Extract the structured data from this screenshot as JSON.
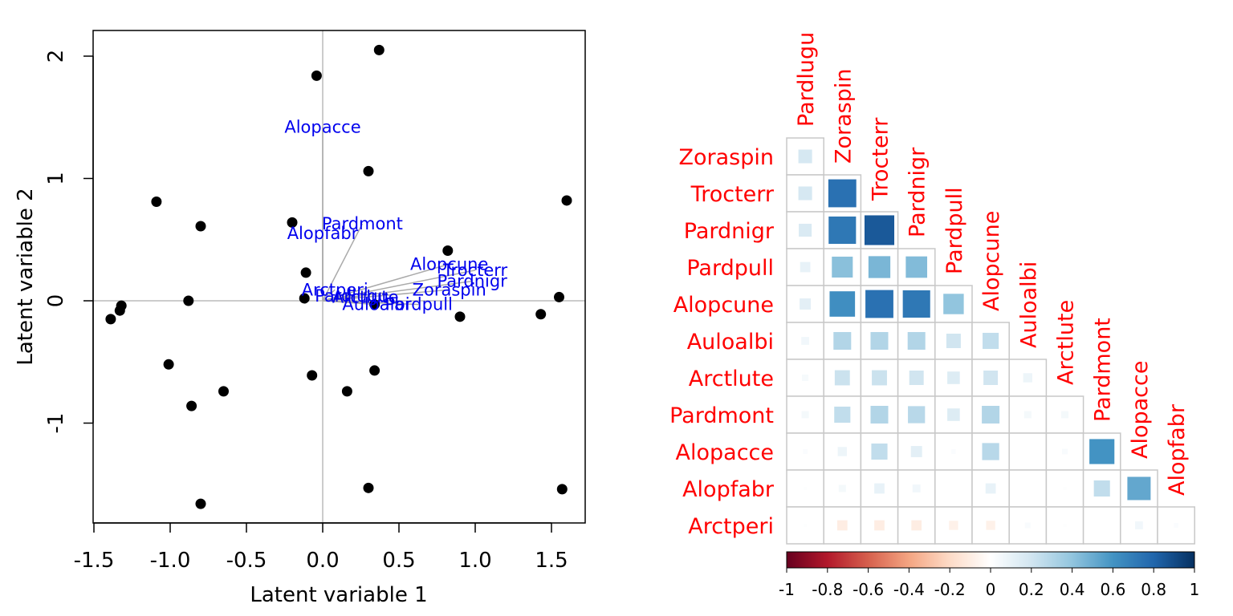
{
  "chart_data": [
    {
      "type": "scatter",
      "subtype": "biplot",
      "xlabel": "Latent variable 1",
      "ylabel": "Latent variable 2",
      "xlim": [
        -1.5,
        1.7
      ],
      "ylim": [
        -1.7,
        2.2
      ],
      "xticks": [
        -1.5,
        -1.0,
        -0.5,
        0.0,
        0.5,
        1.0,
        1.5
      ],
      "xtick_labels": [
        "-1.5",
        "-1.0",
        "-0.5",
        "0.0",
        "0.5",
        "1.0",
        "1.5"
      ],
      "yticks": [
        -1,
        0,
        1,
        2
      ],
      "ytick_labels": [
        "-1",
        "0",
        "1",
        "2"
      ],
      "reference_lines": {
        "x": 0,
        "y": 0
      },
      "point_color": "#000000",
      "label_color": "#0000ee",
      "arrow_color": "#aaaaaa",
      "points": [
        {
          "x": 0.37,
          "y": 2.05
        },
        {
          "x": -0.04,
          "y": 1.84
        },
        {
          "x": 0.3,
          "y": 1.06
        },
        {
          "x": -1.09,
          "y": 0.81
        },
        {
          "x": 1.6,
          "y": 0.82
        },
        {
          "x": -0.8,
          "y": 0.61
        },
        {
          "x": -0.2,
          "y": 0.64
        },
        {
          "x": 0.82,
          "y": 0.41
        },
        {
          "x": -0.11,
          "y": 0.23
        },
        {
          "x": -0.12,
          "y": 0.02
        },
        {
          "x": 0.34,
          "y": -0.03
        },
        {
          "x": 1.55,
          "y": 0.03
        },
        {
          "x": -0.88,
          "y": 0.0
        },
        {
          "x": -1.32,
          "y": -0.04
        },
        {
          "x": -1.33,
          "y": -0.08
        },
        {
          "x": -1.39,
          "y": -0.15
        },
        {
          "x": 0.9,
          "y": -0.13
        },
        {
          "x": 1.43,
          "y": -0.11
        },
        {
          "x": -1.01,
          "y": -0.52
        },
        {
          "x": -0.07,
          "y": -0.61
        },
        {
          "x": 0.34,
          "y": -0.57
        },
        {
          "x": -0.65,
          "y": -0.74
        },
        {
          "x": 0.16,
          "y": -0.74
        },
        {
          "x": -0.86,
          "y": -0.86
        },
        {
          "x": 0.3,
          "y": -1.53
        },
        {
          "x": 1.57,
          "y": -1.54
        },
        {
          "x": -0.8,
          "y": -1.66
        }
      ],
      "loadings": [
        {
          "name": "Alopacce",
          "x": 0.0,
          "y": 1.42
        },
        {
          "name": "Pardmont",
          "x": 0.26,
          "y": 0.63
        },
        {
          "name": "Alopfabr",
          "x": 0.0,
          "y": 0.55
        },
        {
          "name": "Alopcune",
          "x": 0.83,
          "y": 0.3
        },
        {
          "name": "Trocterr",
          "x": 1.0,
          "y": 0.25
        },
        {
          "name": "Pardnigr",
          "x": 0.98,
          "y": 0.16
        },
        {
          "name": "Zoraspin",
          "x": 0.83,
          "y": 0.09
        },
        {
          "name": "Arctperi",
          "x": 0.08,
          "y": 0.09
        },
        {
          "name": "Pardlugu",
          "x": 0.19,
          "y": 0.04
        },
        {
          "name": "Arctlute",
          "x": 0.28,
          "y": 0.03
        },
        {
          "name": "Auloalbi",
          "x": 0.35,
          "y": -0.03
        },
        {
          "name": "Pardpull",
          "x": 0.63,
          "y": -0.03
        }
      ]
    },
    {
      "type": "heatmap",
      "subtype": "correlation-lower-triangle",
      "column_labels": [
        "Pardlugu",
        "Zoraspin",
        "Trocterr",
        "Pardnigr",
        "Pardpull",
        "Alopcune",
        "Auloalbi",
        "Arctlute",
        "Pardmont",
        "Alopacce",
        "Alopfabr"
      ],
      "row_labels": [
        "Zoraspin",
        "Trocterr",
        "Pardnigr",
        "Pardpull",
        "Alopcune",
        "Auloalbi",
        "Arctlute",
        "Pardmont",
        "Alopacce",
        "Alopfabr",
        "Arctperi"
      ],
      "label_color": "#ff0000",
      "values": [
        [
          0.18
        ],
        [
          0.18,
          0.75
        ],
        [
          0.16,
          0.72,
          0.85
        ],
        [
          0.1,
          0.42,
          0.46,
          0.44
        ],
        [
          0.12,
          0.62,
          0.75,
          0.72,
          0.4
        ],
        [
          0.06,
          0.3,
          0.3,
          0.3,
          0.2,
          0.25
        ],
        [
          0.04,
          0.22,
          0.22,
          0.2,
          0.15,
          0.2,
          0.08
        ],
        [
          0.05,
          0.25,
          0.3,
          0.28,
          0.15,
          0.3,
          0.05,
          0.05
        ],
        [
          0.02,
          0.08,
          0.25,
          0.12,
          0.02,
          0.28,
          0.0,
          0.03,
          0.6
        ],
        [
          0.01,
          0.05,
          0.1,
          0.06,
          0.0,
          0.1,
          0.0,
          0.01,
          0.25,
          0.52
        ],
        [
          0.01,
          -0.1,
          -0.1,
          -0.1,
          -0.08,
          -0.08,
          0.03,
          0.01,
          0.0,
          0.06,
          0.02
        ]
      ],
      "colorbar": {
        "min": -1,
        "max": 1,
        "tick_labels": [
          "-1",
          "-0.8",
          "-0.6",
          "-0.4",
          "-0.2",
          "0",
          "0.2",
          "0.4",
          "0.6",
          "0.8",
          "1"
        ],
        "stops": [
          "#67001f",
          "#b2182b",
          "#d6604d",
          "#f4a582",
          "#fddbc7",
          "#ffffff",
          "#d1e5f0",
          "#92c5de",
          "#4393c3",
          "#2166ac",
          "#053061"
        ]
      }
    }
  ]
}
